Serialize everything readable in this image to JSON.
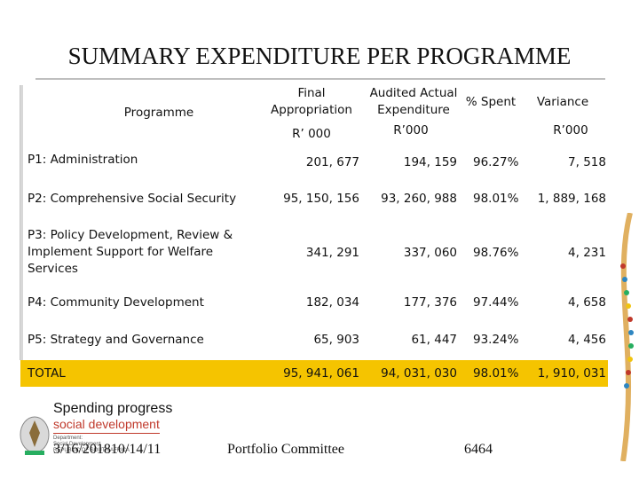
{
  "title": "SUMMARY EXPENDITURE PER PROGRAMME",
  "headers": {
    "programme": "Programme",
    "final_l1": "Final",
    "final_l2": "Appropriation",
    "final_unit": "R’ 000",
    "audited_l1": "Audited Actual",
    "audited_l2": "Expenditure",
    "audited_unit": "R’000",
    "spent": "% Spent",
    "variance": "Variance",
    "variance_unit": "R’000"
  },
  "rows": [
    {
      "programme": "P1: Administration",
      "final": "201, 677",
      "audited": "194, 159",
      "spent": "96.27%",
      "variance": "7, 518"
    },
    {
      "programme": "P2: Comprehensive Social Security",
      "final": "95, 150, 156",
      "audited": "93, 260, 988",
      "spent": "98.01%",
      "variance": "1, 889, 168"
    },
    {
      "programme_l1": "P3: Policy Development, Review &",
      "programme_l2": "Implement Support for Welfare",
      "programme_l3": "Services",
      "final": "341, 291",
      "audited": "337, 060",
      "spent": "98.76%",
      "variance": "4, 231"
    },
    {
      "programme": "P4: Community Development",
      "final": "182, 034",
      "audited": "177, 376",
      "spent": "97.44%",
      "variance": "4, 658"
    },
    {
      "programme": "P5: Strategy and Governance",
      "final": "65, 903",
      "audited": "61, 447",
      "spent": "93.24%",
      "variance": "4, 456"
    }
  ],
  "total": {
    "programme": "TOTAL",
    "final": "95, 941, 061",
    "audited": "94, 031, 030",
    "spent": "98.01%",
    "variance": "1, 910, 031"
  },
  "footer": {
    "spending": "Spending progress",
    "logo_text": "social development",
    "dept_l1": "Department:",
    "dept_l2": "Social Development",
    "dept_l3": "REPUBLIC OF SOUTH AFRICA",
    "date": "3/16/201810/14/11",
    "center": "Portfolio Committee",
    "page": "6464"
  },
  "colors": {
    "total_band": "#f5c400",
    "logo_red": "#c0392b"
  }
}
